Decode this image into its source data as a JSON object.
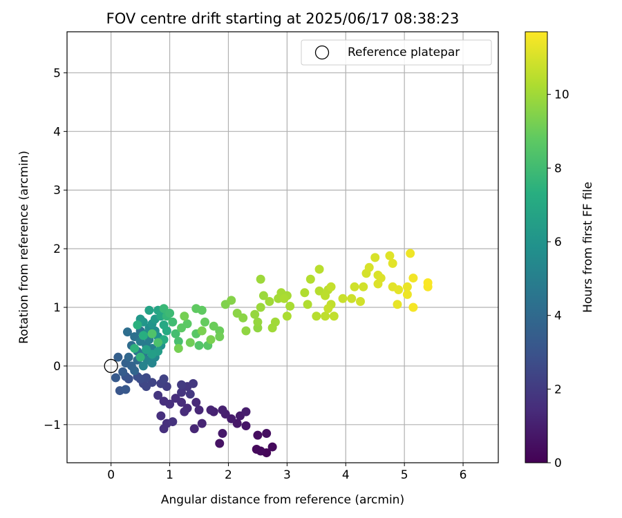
{
  "chart_data": {
    "type": "scatter",
    "title": "FOV centre drift starting at 2025/06/17 08:38:23",
    "xlabel": "Angular distance from reference (arcmin)",
    "ylabel": "Rotation from reference (arcmin)",
    "xlim": [
      -0.75,
      6.6
    ],
    "ylim": [
      -1.65,
      5.7
    ],
    "xticks": [
      "0",
      "1",
      "2",
      "3",
      "4",
      "5",
      "6"
    ],
    "yticks": [
      "−1",
      "0",
      "1",
      "2",
      "3",
      "4",
      "5"
    ],
    "xtick_values": [
      0,
      1,
      2,
      3,
      4,
      5,
      6
    ],
    "ytick_values": [
      -1,
      0,
      1,
      2,
      3,
      4,
      5
    ],
    "grid": true,
    "legend": {
      "placement": "top-right",
      "entries": [
        "Reference platepar"
      ]
    },
    "reference_point": {
      "x": 0,
      "y": 0
    },
    "colorbar": {
      "label": "Hours from first FF file",
      "range": [
        0,
        11.7
      ],
      "ticks": [
        "0",
        "2",
        "4",
        "6",
        "8",
        "10"
      ],
      "tick_values": [
        0,
        2,
        4,
        6,
        8,
        10
      ],
      "colormap": "viridis"
    },
    "points": [
      [
        2.65,
        -1.48,
        0.2
      ],
      [
        2.55,
        -1.45,
        0.3
      ],
      [
        2.48,
        -1.42,
        0.25
      ],
      [
        2.75,
        -1.38,
        0.3
      ],
      [
        2.5,
        -1.18,
        0.4
      ],
      [
        2.65,
        -1.15,
        0.45
      ],
      [
        1.85,
        -1.32,
        0.6
      ],
      [
        1.9,
        -1.15,
        0.8
      ],
      [
        2.3,
        -1.02,
        0.7
      ],
      [
        2.15,
        -0.98,
        0.75
      ],
      [
        2.05,
        -0.9,
        0.9
      ],
      [
        2.2,
        -0.85,
        0.85
      ],
      [
        2.3,
        -0.78,
        0.95
      ],
      [
        1.95,
        -0.82,
        1.0
      ],
      [
        1.9,
        -0.75,
        1.05
      ],
      [
        1.75,
        -0.78,
        1.1
      ],
      [
        1.7,
        -0.75,
        1.15
      ],
      [
        1.55,
        -0.98,
        1.2
      ],
      [
        1.42,
        -1.07,
        1.25
      ],
      [
        1.5,
        -0.75,
        1.3
      ],
      [
        1.45,
        -0.62,
        1.35
      ],
      [
        1.3,
        -0.72,
        1.4
      ],
      [
        1.25,
        -0.78,
        1.45
      ],
      [
        1.2,
        -0.62,
        1.5
      ],
      [
        1.1,
        -0.55,
        1.55
      ],
      [
        1.0,
        -0.65,
        1.6
      ],
      [
        0.9,
        -0.6,
        1.6
      ],
      [
        0.95,
        -0.98,
        1.6
      ],
      [
        0.9,
        -1.07,
        1.6
      ],
      [
        0.85,
        -0.85,
        1.6
      ],
      [
        1.05,
        -0.95,
        1.7
      ],
      [
        0.8,
        -0.5,
        1.8
      ],
      [
        1.2,
        -0.45,
        1.8
      ],
      [
        1.3,
        -0.35,
        1.85
      ],
      [
        1.35,
        -0.48,
        1.9
      ],
      [
        1.4,
        -0.3,
        1.95
      ],
      [
        1.2,
        -0.32,
        2.0
      ],
      [
        0.95,
        -0.35,
        2.1
      ],
      [
        0.85,
        -0.3,
        2.2
      ],
      [
        0.9,
        -0.22,
        2.3
      ],
      [
        0.7,
        -0.28,
        2.4
      ],
      [
        0.6,
        -0.35,
        2.5
      ],
      [
        0.55,
        -0.3,
        2.5
      ],
      [
        0.6,
        -0.2,
        2.6
      ],
      [
        0.5,
        -0.22,
        2.7
      ],
      [
        0.45,
        -0.18,
        2.8
      ],
      [
        0.3,
        -0.22,
        2.9
      ],
      [
        0.25,
        -0.18,
        3.0
      ],
      [
        0.15,
        -0.42,
        3.1
      ],
      [
        0.25,
        -0.4,
        3.2
      ],
      [
        0.08,
        -0.2,
        3.3
      ],
      [
        0.2,
        -0.1,
        3.4
      ],
      [
        0.12,
        0.15,
        3.5
      ],
      [
        0.25,
        0.05,
        3.6
      ],
      [
        0.35,
        0.0,
        3.7
      ],
      [
        0.4,
        -0.08,
        3.8
      ],
      [
        0.3,
        0.15,
        3.9
      ],
      [
        0.45,
        0.1,
        4.0
      ],
      [
        0.35,
        0.35,
        4.1
      ],
      [
        0.28,
        0.58,
        4.2
      ],
      [
        0.4,
        0.5,
        4.3
      ],
      [
        0.5,
        0.6,
        4.4
      ],
      [
        0.45,
        0.25,
        4.5
      ],
      [
        0.55,
        0.2,
        4.6
      ],
      [
        0.6,
        0.35,
        4.7
      ],
      [
        0.5,
        0.42,
        4.8
      ],
      [
        0.65,
        0.45,
        4.9
      ],
      [
        0.7,
        0.3,
        5.0
      ],
      [
        0.62,
        0.1,
        5.1
      ],
      [
        0.55,
        0.0,
        5.2
      ],
      [
        0.7,
        0.05,
        5.3
      ],
      [
        0.75,
        0.15,
        5.4
      ],
      [
        0.6,
        0.55,
        5.5
      ],
      [
        0.65,
        0.65,
        5.6
      ],
      [
        0.75,
        0.6,
        5.7
      ],
      [
        0.8,
        0.5,
        5.8
      ],
      [
        0.85,
        0.35,
        5.9
      ],
      [
        0.7,
        0.72,
        6.0
      ],
      [
        0.55,
        0.75,
        6.1
      ],
      [
        0.5,
        0.8,
        6.2
      ],
      [
        0.75,
        0.8,
        6.3
      ],
      [
        0.8,
        0.25,
        6.4
      ],
      [
        0.7,
        0.2,
        6.5
      ],
      [
        0.6,
        0.28,
        6.6
      ],
      [
        0.65,
        0.95,
        6.7
      ],
      [
        0.8,
        0.95,
        6.8
      ],
      [
        0.85,
        0.85,
        6.9
      ],
      [
        0.9,
        0.7,
        7.0
      ],
      [
        0.95,
        0.6,
        7.1
      ],
      [
        0.9,
        0.45,
        7.2
      ],
      [
        0.55,
        0.52,
        7.3
      ],
      [
        0.45,
        0.7,
        7.4
      ],
      [
        0.4,
        0.3,
        7.5
      ],
      [
        0.5,
        0.15,
        7.6
      ],
      [
        0.95,
        0.85,
        7.7
      ],
      [
        0.9,
        0.98,
        7.8
      ],
      [
        1.0,
        0.9,
        7.9
      ],
      [
        1.05,
        0.75,
        8.0
      ],
      [
        1.1,
        0.55,
        8.1
      ],
      [
        1.15,
        0.42,
        8.2
      ],
      [
        0.8,
        0.4,
        8.3
      ],
      [
        0.7,
        0.55,
        8.4
      ],
      [
        1.5,
        0.35,
        8.5
      ],
      [
        1.65,
        0.35,
        8.6
      ],
      [
        1.45,
        0.55,
        8.6
      ],
      [
        1.2,
        0.65,
        8.7
      ],
      [
        1.3,
        0.72,
        8.7
      ],
      [
        1.55,
        0.95,
        8.8
      ],
      [
        1.45,
        0.98,
        8.8
      ],
      [
        1.6,
        0.75,
        8.9
      ],
      [
        1.75,
        0.68,
        9.0
      ],
      [
        1.85,
        0.6,
        9.0
      ],
      [
        1.85,
        0.5,
        9.1
      ],
      [
        1.35,
        0.4,
        9.1
      ],
      [
        1.25,
        0.85,
        9.2
      ],
      [
        1.15,
        0.3,
        9.2
      ],
      [
        1.55,
        0.6,
        9.3
      ],
      [
        1.7,
        0.45,
        9.3
      ],
      [
        1.95,
        1.05,
        9.4
      ],
      [
        2.05,
        1.12,
        9.5
      ],
      [
        2.15,
        0.9,
        9.6
      ],
      [
        2.25,
        0.82,
        9.6
      ],
      [
        2.3,
        0.6,
        9.7
      ],
      [
        2.5,
        0.65,
        9.7
      ],
      [
        2.5,
        0.75,
        9.8
      ],
      [
        2.45,
        0.88,
        9.8
      ],
      [
        2.55,
        1.0,
        9.9
      ],
      [
        2.6,
        1.2,
        9.9
      ],
      [
        2.55,
        1.48,
        9.95
      ],
      [
        2.7,
        1.1,
        10.0
      ],
      [
        2.75,
        0.65,
        10.0
      ],
      [
        2.8,
        0.75,
        10.0
      ],
      [
        2.85,
        1.15,
        10.05
      ],
      [
        2.9,
        1.25,
        10.1
      ],
      [
        3.0,
        1.2,
        10.1
      ],
      [
        3.05,
        1.02,
        10.15
      ],
      [
        3.0,
        0.85,
        10.2
      ],
      [
        2.95,
        1.15,
        10.2
      ],
      [
        3.3,
        1.25,
        10.3
      ],
      [
        3.35,
        1.05,
        10.3
      ],
      [
        3.4,
        1.48,
        10.35
      ],
      [
        3.5,
        0.85,
        10.4
      ],
      [
        3.55,
        1.28,
        10.4
      ],
      [
        3.55,
        1.65,
        10.45
      ],
      [
        3.65,
        1.2,
        10.5
      ],
      [
        3.7,
        1.3,
        10.5
      ],
      [
        3.65,
        0.85,
        10.55
      ],
      [
        3.75,
        1.05,
        10.6
      ],
      [
        3.8,
        0.85,
        10.6
      ],
      [
        3.75,
        1.35,
        10.65
      ],
      [
        3.7,
        0.98,
        10.7
      ],
      [
        3.95,
        1.15,
        10.75
      ],
      [
        4.1,
        1.15,
        10.8
      ],
      [
        4.15,
        1.35,
        10.85
      ],
      [
        4.25,
        1.1,
        10.9
      ],
      [
        4.3,
        1.35,
        10.9
      ],
      [
        4.35,
        1.58,
        10.95
      ],
      [
        4.4,
        1.68,
        11.0
      ],
      [
        4.5,
        1.85,
        11.0
      ],
      [
        4.55,
        1.55,
        11.05
      ],
      [
        4.6,
        1.5,
        11.1
      ],
      [
        4.55,
        1.4,
        11.1
      ],
      [
        4.75,
        1.88,
        11.15
      ],
      [
        4.8,
        1.75,
        11.2
      ],
      [
        4.8,
        1.35,
        11.2
      ],
      [
        4.9,
        1.3,
        11.25
      ],
      [
        4.88,
        1.05,
        11.3
      ],
      [
        5.05,
        1.35,
        11.35
      ],
      [
        5.05,
        1.22,
        11.4
      ],
      [
        5.1,
        1.92,
        11.45
      ],
      [
        5.15,
        1.5,
        11.5
      ],
      [
        5.15,
        1.0,
        11.55
      ],
      [
        5.4,
        1.35,
        11.6
      ],
      [
        5.4,
        1.42,
        11.65
      ]
    ]
  }
}
